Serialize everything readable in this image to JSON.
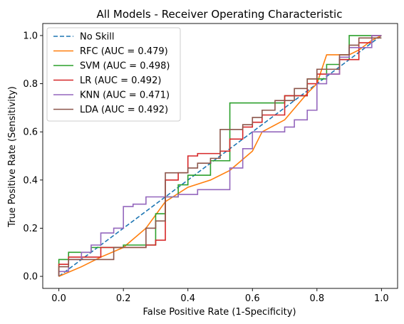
{
  "chart_data": {
    "type": "line",
    "title": "All Models - Receiver Operating Characteristic",
    "xlabel": "False Positive Rate (1-Specificity)",
    "ylabel": "True Positive Rate (Sensitivity)",
    "xlim": [
      -0.05,
      1.05
    ],
    "ylim": [
      -0.05,
      1.05
    ],
    "xticks": [
      "0.0",
      "0.2",
      "0.4",
      "0.6",
      "0.8",
      "1.0"
    ],
    "yticks": [
      "0.0",
      "0.2",
      "0.4",
      "0.6",
      "0.8",
      "1.0"
    ],
    "grid": false,
    "legend_position": "upper-left",
    "series": [
      {
        "name": "No Skill",
        "color": "#1f77b4",
        "dash": true,
        "step": false,
        "points": [
          [
            0,
            0
          ],
          [
            1,
            1
          ]
        ]
      },
      {
        "name": "RFC (AUC = 0.479)",
        "color": "#ff7f0e",
        "dash": false,
        "step": false,
        "points": [
          [
            0,
            0
          ],
          [
            0.07,
            0.04
          ],
          [
            0.13,
            0.08
          ],
          [
            0.2,
            0.12
          ],
          [
            0.27,
            0.2
          ],
          [
            0.33,
            0.31
          ],
          [
            0.4,
            0.37
          ],
          [
            0.47,
            0.4
          ],
          [
            0.53,
            0.44
          ],
          [
            0.6,
            0.52
          ],
          [
            0.63,
            0.6
          ],
          [
            0.7,
            0.65
          ],
          [
            0.77,
            0.76
          ],
          [
            0.8,
            0.8
          ],
          [
            0.83,
            0.92
          ],
          [
            0.9,
            0.92
          ],
          [
            0.93,
            0.94
          ],
          [
            0.97,
            0.98
          ],
          [
            1,
            1
          ]
        ]
      },
      {
        "name": "SVM (AUC = 0.498)",
        "color": "#2ca02c",
        "dash": false,
        "step": true,
        "points": [
          [
            0,
            0
          ],
          [
            0,
            0.07
          ],
          [
            0.03,
            0.07
          ],
          [
            0.03,
            0.1
          ],
          [
            0.1,
            0.1
          ],
          [
            0.1,
            0.12
          ],
          [
            0.2,
            0.12
          ],
          [
            0.2,
            0.13
          ],
          [
            0.3,
            0.13
          ],
          [
            0.3,
            0.26
          ],
          [
            0.33,
            0.26
          ],
          [
            0.33,
            0.33
          ],
          [
            0.37,
            0.33
          ],
          [
            0.37,
            0.38
          ],
          [
            0.4,
            0.38
          ],
          [
            0.4,
            0.42
          ],
          [
            0.47,
            0.42
          ],
          [
            0.47,
            0.48
          ],
          [
            0.53,
            0.48
          ],
          [
            0.53,
            0.72
          ],
          [
            0.7,
            0.72
          ],
          [
            0.7,
            0.75
          ],
          [
            0.77,
            0.75
          ],
          [
            0.77,
            0.82
          ],
          [
            0.83,
            0.82
          ],
          [
            0.83,
            0.88
          ],
          [
            0.87,
            0.88
          ],
          [
            0.87,
            0.9
          ],
          [
            0.9,
            0.9
          ],
          [
            0.9,
            1
          ],
          [
            0.93,
            1
          ],
          [
            0.93,
            1
          ],
          [
            1,
            1
          ]
        ]
      },
      {
        "name": "LR (AUC = 0.492)",
        "color": "#d62728",
        "dash": false,
        "step": true,
        "points": [
          [
            0,
            0
          ],
          [
            0,
            0.05
          ],
          [
            0.03,
            0.05
          ],
          [
            0.03,
            0.08
          ],
          [
            0.13,
            0.08
          ],
          [
            0.13,
            0.12
          ],
          [
            0.27,
            0.12
          ],
          [
            0.27,
            0.13
          ],
          [
            0.3,
            0.13
          ],
          [
            0.3,
            0.15
          ],
          [
            0.33,
            0.15
          ],
          [
            0.33,
            0.4
          ],
          [
            0.37,
            0.4
          ],
          [
            0.37,
            0.43
          ],
          [
            0.4,
            0.43
          ],
          [
            0.4,
            0.5
          ],
          [
            0.43,
            0.5
          ],
          [
            0.43,
            0.51
          ],
          [
            0.5,
            0.51
          ],
          [
            0.5,
            0.52
          ],
          [
            0.53,
            0.52
          ],
          [
            0.53,
            0.57
          ],
          [
            0.57,
            0.57
          ],
          [
            0.57,
            0.62
          ],
          [
            0.6,
            0.62
          ],
          [
            0.6,
            0.64
          ],
          [
            0.63,
            0.64
          ],
          [
            0.63,
            0.67
          ],
          [
            0.7,
            0.67
          ],
          [
            0.7,
            0.75
          ],
          [
            0.77,
            0.75
          ],
          [
            0.77,
            0.8
          ],
          [
            0.8,
            0.8
          ],
          [
            0.8,
            0.84
          ],
          [
            0.87,
            0.84
          ],
          [
            0.87,
            0.9
          ],
          [
            0.93,
            0.9
          ],
          [
            0.93,
            0.97
          ],
          [
            0.97,
            0.97
          ],
          [
            0.97,
            1
          ],
          [
            1,
            1
          ]
        ]
      },
      {
        "name": "KNN (AUC = 0.471)",
        "color": "#9467bd",
        "dash": false,
        "step": true,
        "points": [
          [
            0,
            0
          ],
          [
            0,
            0.02
          ],
          [
            0.03,
            0.02
          ],
          [
            0.03,
            0.07
          ],
          [
            0.07,
            0.07
          ],
          [
            0.07,
            0.1
          ],
          [
            0.1,
            0.1
          ],
          [
            0.1,
            0.13
          ],
          [
            0.13,
            0.13
          ],
          [
            0.13,
            0.18
          ],
          [
            0.17,
            0.18
          ],
          [
            0.17,
            0.2
          ],
          [
            0.2,
            0.2
          ],
          [
            0.2,
            0.29
          ],
          [
            0.23,
            0.29
          ],
          [
            0.23,
            0.3
          ],
          [
            0.27,
            0.3
          ],
          [
            0.27,
            0.33
          ],
          [
            0.37,
            0.33
          ],
          [
            0.37,
            0.34
          ],
          [
            0.43,
            0.34
          ],
          [
            0.43,
            0.36
          ],
          [
            0.53,
            0.36
          ],
          [
            0.53,
            0.45
          ],
          [
            0.57,
            0.45
          ],
          [
            0.57,
            0.53
          ],
          [
            0.6,
            0.53
          ],
          [
            0.6,
            0.6
          ],
          [
            0.7,
            0.6
          ],
          [
            0.7,
            0.62
          ],
          [
            0.73,
            0.62
          ],
          [
            0.73,
            0.65
          ],
          [
            0.77,
            0.65
          ],
          [
            0.77,
            0.69
          ],
          [
            0.8,
            0.69
          ],
          [
            0.8,
            0.8
          ],
          [
            0.83,
            0.8
          ],
          [
            0.83,
            0.84
          ],
          [
            0.87,
            0.84
          ],
          [
            0.87,
            0.91
          ],
          [
            0.9,
            0.91
          ],
          [
            0.9,
            0.95
          ],
          [
            0.97,
            0.95
          ],
          [
            0.97,
            1
          ],
          [
            1,
            1
          ]
        ]
      },
      {
        "name": "LDA (AUC = 0.492)",
        "color": "#8c564b",
        "dash": false,
        "step": true,
        "points": [
          [
            0,
            0
          ],
          [
            0,
            0.04
          ],
          [
            0.03,
            0.04
          ],
          [
            0.03,
            0.07
          ],
          [
            0.17,
            0.07
          ],
          [
            0.17,
            0.12
          ],
          [
            0.27,
            0.12
          ],
          [
            0.27,
            0.2
          ],
          [
            0.3,
            0.2
          ],
          [
            0.3,
            0.23
          ],
          [
            0.33,
            0.23
          ],
          [
            0.33,
            0.43
          ],
          [
            0.4,
            0.43
          ],
          [
            0.4,
            0.45
          ],
          [
            0.43,
            0.45
          ],
          [
            0.43,
            0.47
          ],
          [
            0.47,
            0.47
          ],
          [
            0.47,
            0.49
          ],
          [
            0.5,
            0.49
          ],
          [
            0.5,
            0.61
          ],
          [
            0.57,
            0.61
          ],
          [
            0.57,
            0.63
          ],
          [
            0.6,
            0.63
          ],
          [
            0.6,
            0.66
          ],
          [
            0.63,
            0.66
          ],
          [
            0.63,
            0.69
          ],
          [
            0.67,
            0.69
          ],
          [
            0.67,
            0.73
          ],
          [
            0.73,
            0.73
          ],
          [
            0.73,
            0.78
          ],
          [
            0.77,
            0.78
          ],
          [
            0.77,
            0.82
          ],
          [
            0.8,
            0.82
          ],
          [
            0.8,
            0.86
          ],
          [
            0.87,
            0.86
          ],
          [
            0.87,
            0.92
          ],
          [
            0.9,
            0.92
          ],
          [
            0.9,
            0.96
          ],
          [
            0.93,
            0.96
          ],
          [
            0.93,
            0.99
          ],
          [
            1,
            0.99
          ]
        ]
      }
    ]
  }
}
